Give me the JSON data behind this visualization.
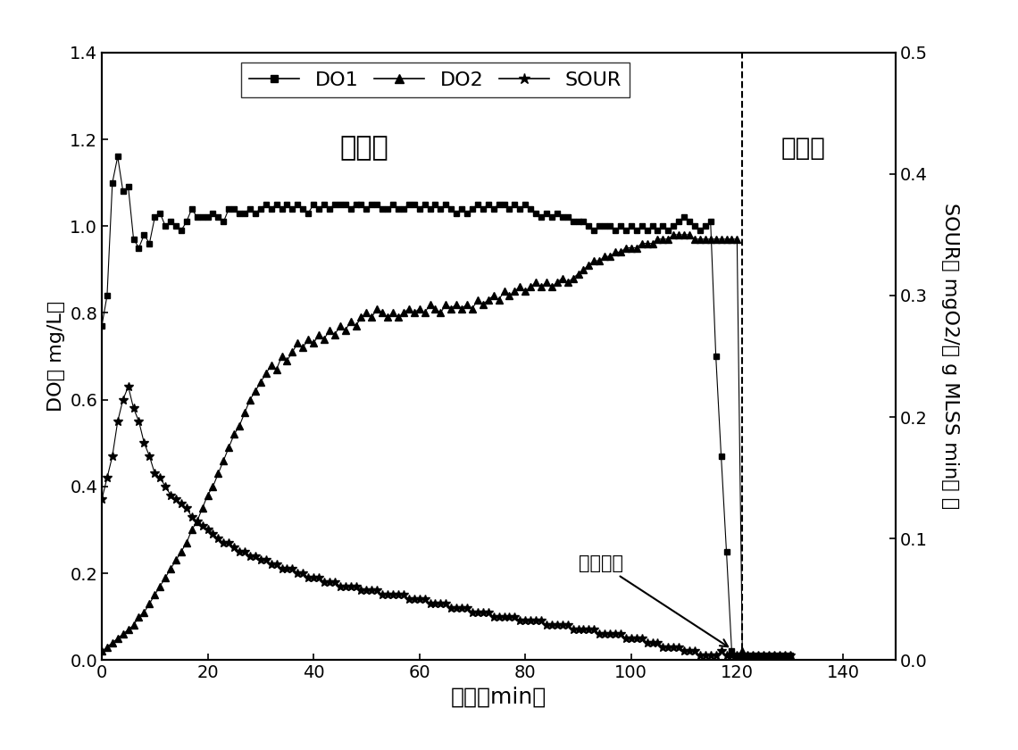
{
  "xlabel": "时间（min）",
  "ylabel_left": "DO（ mg/L）",
  "ylabel_right": "SOUR（ mgO2/（ g MLSS min） ）",
  "xlim": [
    0,
    150
  ],
  "ylim_left": [
    0,
    1.4
  ],
  "ylim_right": [
    0,
    0.5
  ],
  "yticks_left": [
    0.0,
    0.2,
    0.4,
    0.6,
    0.8,
    1.0,
    1.2,
    1.4
  ],
  "yticks_right": [
    0.0,
    0.1,
    0.2,
    0.3,
    0.4,
    0.5
  ],
  "xticks": [
    0,
    20,
    40,
    60,
    80,
    100,
    120,
    140
  ],
  "dashed_vline_x": 121,
  "label_aerobic": "好氧段",
  "label_anoxic": "缺氧段",
  "label_stop_aeration": "停止曝气",
  "background_color": "#ffffff",
  "DO1": {
    "x": [
      0,
      1,
      2,
      3,
      4,
      5,
      6,
      7,
      8,
      9,
      10,
      11,
      12,
      13,
      14,
      15,
      16,
      17,
      18,
      19,
      20,
      21,
      22,
      23,
      24,
      25,
      26,
      27,
      28,
      29,
      30,
      31,
      32,
      33,
      34,
      35,
      36,
      37,
      38,
      39,
      40,
      41,
      42,
      43,
      44,
      45,
      46,
      47,
      48,
      49,
      50,
      51,
      52,
      53,
      54,
      55,
      56,
      57,
      58,
      59,
      60,
      61,
      62,
      63,
      64,
      65,
      66,
      67,
      68,
      69,
      70,
      71,
      72,
      73,
      74,
      75,
      76,
      77,
      78,
      79,
      80,
      81,
      82,
      83,
      84,
      85,
      86,
      87,
      88,
      89,
      90,
      91,
      92,
      93,
      94,
      95,
      96,
      97,
      98,
      99,
      100,
      101,
      102,
      103,
      104,
      105,
      106,
      107,
      108,
      109,
      110,
      111,
      112,
      113,
      114,
      115,
      116,
      117,
      118,
      119,
      120,
      121,
      122,
      123,
      124,
      125,
      126,
      127,
      128,
      129,
      130
    ],
    "y": [
      0.77,
      0.84,
      1.1,
      1.16,
      1.08,
      1.09,
      0.97,
      0.95,
      0.98,
      0.96,
      1.02,
      1.03,
      1.0,
      1.01,
      1.0,
      0.99,
      1.01,
      1.04,
      1.02,
      1.02,
      1.02,
      1.03,
      1.02,
      1.01,
      1.04,
      1.04,
      1.03,
      1.03,
      1.04,
      1.03,
      1.04,
      1.05,
      1.04,
      1.05,
      1.04,
      1.05,
      1.04,
      1.05,
      1.04,
      1.03,
      1.05,
      1.04,
      1.05,
      1.04,
      1.05,
      1.05,
      1.05,
      1.04,
      1.05,
      1.05,
      1.04,
      1.05,
      1.05,
      1.04,
      1.04,
      1.05,
      1.04,
      1.04,
      1.05,
      1.05,
      1.04,
      1.05,
      1.04,
      1.05,
      1.04,
      1.05,
      1.04,
      1.03,
      1.04,
      1.03,
      1.04,
      1.05,
      1.04,
      1.05,
      1.04,
      1.05,
      1.05,
      1.04,
      1.05,
      1.04,
      1.05,
      1.04,
      1.03,
      1.02,
      1.03,
      1.02,
      1.03,
      1.02,
      1.02,
      1.01,
      1.01,
      1.01,
      1.0,
      0.99,
      1.0,
      1.0,
      1.0,
      0.99,
      1.0,
      0.99,
      1.0,
      0.99,
      1.0,
      0.99,
      1.0,
      0.99,
      1.0,
      0.99,
      1.0,
      1.01,
      1.02,
      1.01,
      1.0,
      0.99,
      1.0,
      1.01,
      0.7,
      0.47,
      0.25,
      0.02,
      0.01,
      0.01,
      0.01,
      0.01,
      0.01,
      0.01,
      0.01,
      0.01,
      0.01,
      0.01,
      0.01
    ]
  },
  "DO2": {
    "x": [
      0,
      1,
      2,
      3,
      4,
      5,
      6,
      7,
      8,
      9,
      10,
      11,
      12,
      13,
      14,
      15,
      16,
      17,
      18,
      19,
      20,
      21,
      22,
      23,
      24,
      25,
      26,
      27,
      28,
      29,
      30,
      31,
      32,
      33,
      34,
      35,
      36,
      37,
      38,
      39,
      40,
      41,
      42,
      43,
      44,
      45,
      46,
      47,
      48,
      49,
      50,
      51,
      52,
      53,
      54,
      55,
      56,
      57,
      58,
      59,
      60,
      61,
      62,
      63,
      64,
      65,
      66,
      67,
      68,
      69,
      70,
      71,
      72,
      73,
      74,
      75,
      76,
      77,
      78,
      79,
      80,
      81,
      82,
      83,
      84,
      85,
      86,
      87,
      88,
      89,
      90,
      91,
      92,
      93,
      94,
      95,
      96,
      97,
      98,
      99,
      100,
      101,
      102,
      103,
      104,
      105,
      106,
      107,
      108,
      109,
      110,
      111,
      112,
      113,
      114,
      115,
      116,
      117,
      118,
      119,
      120,
      121,
      122,
      123,
      124,
      125,
      126,
      127,
      128,
      129,
      130
    ],
    "y": [
      0.02,
      0.03,
      0.04,
      0.05,
      0.06,
      0.07,
      0.08,
      0.1,
      0.11,
      0.13,
      0.15,
      0.17,
      0.19,
      0.21,
      0.23,
      0.25,
      0.27,
      0.3,
      0.32,
      0.35,
      0.38,
      0.4,
      0.43,
      0.46,
      0.49,
      0.52,
      0.54,
      0.57,
      0.6,
      0.62,
      0.64,
      0.66,
      0.68,
      0.67,
      0.7,
      0.69,
      0.71,
      0.73,
      0.72,
      0.74,
      0.73,
      0.75,
      0.74,
      0.76,
      0.75,
      0.77,
      0.76,
      0.78,
      0.77,
      0.79,
      0.8,
      0.79,
      0.81,
      0.8,
      0.79,
      0.8,
      0.79,
      0.8,
      0.81,
      0.8,
      0.81,
      0.8,
      0.82,
      0.81,
      0.8,
      0.82,
      0.81,
      0.82,
      0.81,
      0.82,
      0.81,
      0.83,
      0.82,
      0.83,
      0.84,
      0.83,
      0.85,
      0.84,
      0.85,
      0.86,
      0.85,
      0.86,
      0.87,
      0.86,
      0.87,
      0.86,
      0.87,
      0.88,
      0.87,
      0.88,
      0.89,
      0.9,
      0.91,
      0.92,
      0.92,
      0.93,
      0.93,
      0.94,
      0.94,
      0.95,
      0.95,
      0.95,
      0.96,
      0.96,
      0.96,
      0.97,
      0.97,
      0.97,
      0.98,
      0.98,
      0.98,
      0.98,
      0.97,
      0.97,
      0.97,
      0.97,
      0.97,
      0.97,
      0.97,
      0.97,
      0.97,
      0.02,
      0.01,
      0.01,
      0.01,
      0.01,
      0.01,
      0.01,
      0.01,
      0.01,
      0.01
    ]
  },
  "SOUR": {
    "x": [
      0,
      1,
      2,
      3,
      4,
      5,
      6,
      7,
      8,
      9,
      10,
      11,
      12,
      13,
      14,
      15,
      16,
      17,
      18,
      19,
      20,
      21,
      22,
      23,
      24,
      25,
      26,
      27,
      28,
      29,
      30,
      31,
      32,
      33,
      34,
      35,
      36,
      37,
      38,
      39,
      40,
      41,
      42,
      43,
      44,
      45,
      46,
      47,
      48,
      49,
      50,
      51,
      52,
      53,
      54,
      55,
      56,
      57,
      58,
      59,
      60,
      61,
      62,
      63,
      64,
      65,
      66,
      67,
      68,
      69,
      70,
      71,
      72,
      73,
      74,
      75,
      76,
      77,
      78,
      79,
      80,
      81,
      82,
      83,
      84,
      85,
      86,
      87,
      88,
      89,
      90,
      91,
      92,
      93,
      94,
      95,
      96,
      97,
      98,
      99,
      100,
      101,
      102,
      103,
      104,
      105,
      106,
      107,
      108,
      109,
      110,
      111,
      112,
      113,
      114,
      115,
      116,
      117,
      118,
      119,
      120,
      121,
      122,
      123,
      124,
      125,
      126,
      127,
      128,
      129,
      130
    ],
    "y": [
      0.37,
      0.42,
      0.47,
      0.55,
      0.6,
      0.63,
      0.58,
      0.55,
      0.5,
      0.47,
      0.43,
      0.42,
      0.4,
      0.38,
      0.37,
      0.36,
      0.35,
      0.33,
      0.32,
      0.31,
      0.3,
      0.29,
      0.28,
      0.27,
      0.27,
      0.26,
      0.25,
      0.25,
      0.24,
      0.24,
      0.23,
      0.23,
      0.22,
      0.22,
      0.21,
      0.21,
      0.21,
      0.2,
      0.2,
      0.19,
      0.19,
      0.19,
      0.18,
      0.18,
      0.18,
      0.17,
      0.17,
      0.17,
      0.17,
      0.16,
      0.16,
      0.16,
      0.16,
      0.15,
      0.15,
      0.15,
      0.15,
      0.15,
      0.14,
      0.14,
      0.14,
      0.14,
      0.13,
      0.13,
      0.13,
      0.13,
      0.12,
      0.12,
      0.12,
      0.12,
      0.11,
      0.11,
      0.11,
      0.11,
      0.1,
      0.1,
      0.1,
      0.1,
      0.1,
      0.09,
      0.09,
      0.09,
      0.09,
      0.09,
      0.08,
      0.08,
      0.08,
      0.08,
      0.08,
      0.07,
      0.07,
      0.07,
      0.07,
      0.07,
      0.06,
      0.06,
      0.06,
      0.06,
      0.06,
      0.05,
      0.05,
      0.05,
      0.05,
      0.04,
      0.04,
      0.04,
      0.03,
      0.03,
      0.03,
      0.03,
      0.02,
      0.02,
      0.02,
      0.01,
      0.01,
      0.01,
      0.01,
      0.02,
      0.01,
      0.01,
      0.01,
      0.01,
      0.01,
      0.01,
      0.01,
      0.01,
      0.01,
      0.01,
      0.01,
      0.01,
      0.01
    ]
  }
}
